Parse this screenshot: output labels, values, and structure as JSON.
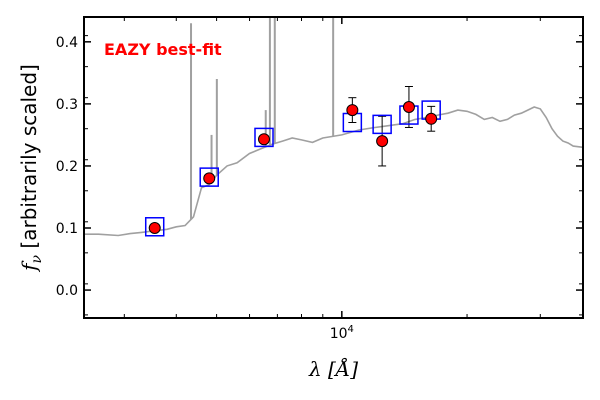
{
  "chart_data": {
    "type": "scatter",
    "title": "",
    "xlabel": "λ [Å]",
    "ylabel": "f_ν [arbitrarily scaled]",
    "ylabel_parts": {
      "symbol": "f",
      "sub": "ν",
      "rest": " [arbitrarily scaled]"
    },
    "xlabel_parts": {
      "symbol": "λ",
      "rest": " [Å]"
    },
    "xscale": "log",
    "xlim": [
      2400,
      38000
    ],
    "ylim": [
      -0.045,
      0.44
    ],
    "x_tick_labels": [
      {
        "value": 10000,
        "base": "10",
        "exp": "4"
      }
    ],
    "y_ticks": [
      0.0,
      0.1,
      0.2,
      0.3,
      0.4
    ],
    "y_tick_labels": [
      "0.0",
      "0.1",
      "0.2",
      "0.3",
      "0.4"
    ],
    "grid": false,
    "annotation": {
      "text": "EAZY best-fit",
      "color": "#ff0000",
      "position": "top-left"
    },
    "colors": {
      "template": "#a0a0a0",
      "model_box": "#0000ff",
      "observed_face": "#ff0000",
      "observed_edge": "#000000"
    },
    "series": [
      {
        "name": "",
        "kind": "template_spectrum",
        "x": [
          2400,
          2600,
          2900,
          3100,
          3300,
          3500,
          3800,
          4000,
          4200,
          4400,
          4600,
          4800,
          5000,
          5300,
          5600,
          6000,
          6400,
          6800,
          7200,
          7600,
          8000,
          8500,
          9000,
          10000,
          11000,
          12000,
          13000,
          14000,
          15000,
          16000,
          17000,
          18000,
          19000,
          20000,
          21000,
          22000,
          23000,
          24000,
          25000,
          26000,
          27000,
          28000,
          29000,
          30000,
          31000,
          32000,
          33000,
          34000,
          35000,
          36000,
          38000
        ],
        "y": [
          0.09,
          0.09,
          0.088,
          0.091,
          0.093,
          0.095,
          0.098,
          0.102,
          0.104,
          0.118,
          0.165,
          0.17,
          0.185,
          0.2,
          0.205,
          0.22,
          0.228,
          0.235,
          0.24,
          0.245,
          0.242,
          0.238,
          0.245,
          0.25,
          0.258,
          0.262,
          0.265,
          0.268,
          0.275,
          0.278,
          0.282,
          0.285,
          0.29,
          0.288,
          0.283,
          0.275,
          0.278,
          0.272,
          0.275,
          0.282,
          0.285,
          0.29,
          0.295,
          0.292,
          0.278,
          0.26,
          0.248,
          0.24,
          0.237,
          0.232,
          0.23
        ]
      },
      {
        "name": "",
        "kind": "emission_lines",
        "lines": [
          {
            "x": 4340,
            "peak": 0.43
          },
          {
            "x": 4862,
            "peak": 0.25
          },
          {
            "x": 5007,
            "peak": 0.34
          },
          {
            "x": 6563,
            "peak": 0.29
          },
          {
            "x": 6716,
            "peak": 0.44
          },
          {
            "x": 6900,
            "peak": 0.44
          },
          {
            "x": 9532,
            "peak": 0.44
          }
        ]
      },
      {
        "name": "",
        "kind": "model_photometry",
        "x": [
          3550,
          4800,
          6500,
          10600,
          12500,
          14500,
          16400
        ],
        "y": [
          0.102,
          0.182,
          0.246,
          0.27,
          0.267,
          0.282,
          0.29
        ]
      },
      {
        "name": "",
        "kind": "observed_photometry",
        "x": [
          3550,
          4800,
          6500,
          10600,
          12500,
          14500,
          16400
        ],
        "y": [
          0.1,
          0.18,
          0.243,
          0.29,
          0.24,
          0.295,
          0.276
        ],
        "yerr": [
          0.004,
          0.005,
          0.005,
          0.02,
          0.04,
          0.033,
          0.02
        ]
      }
    ]
  }
}
